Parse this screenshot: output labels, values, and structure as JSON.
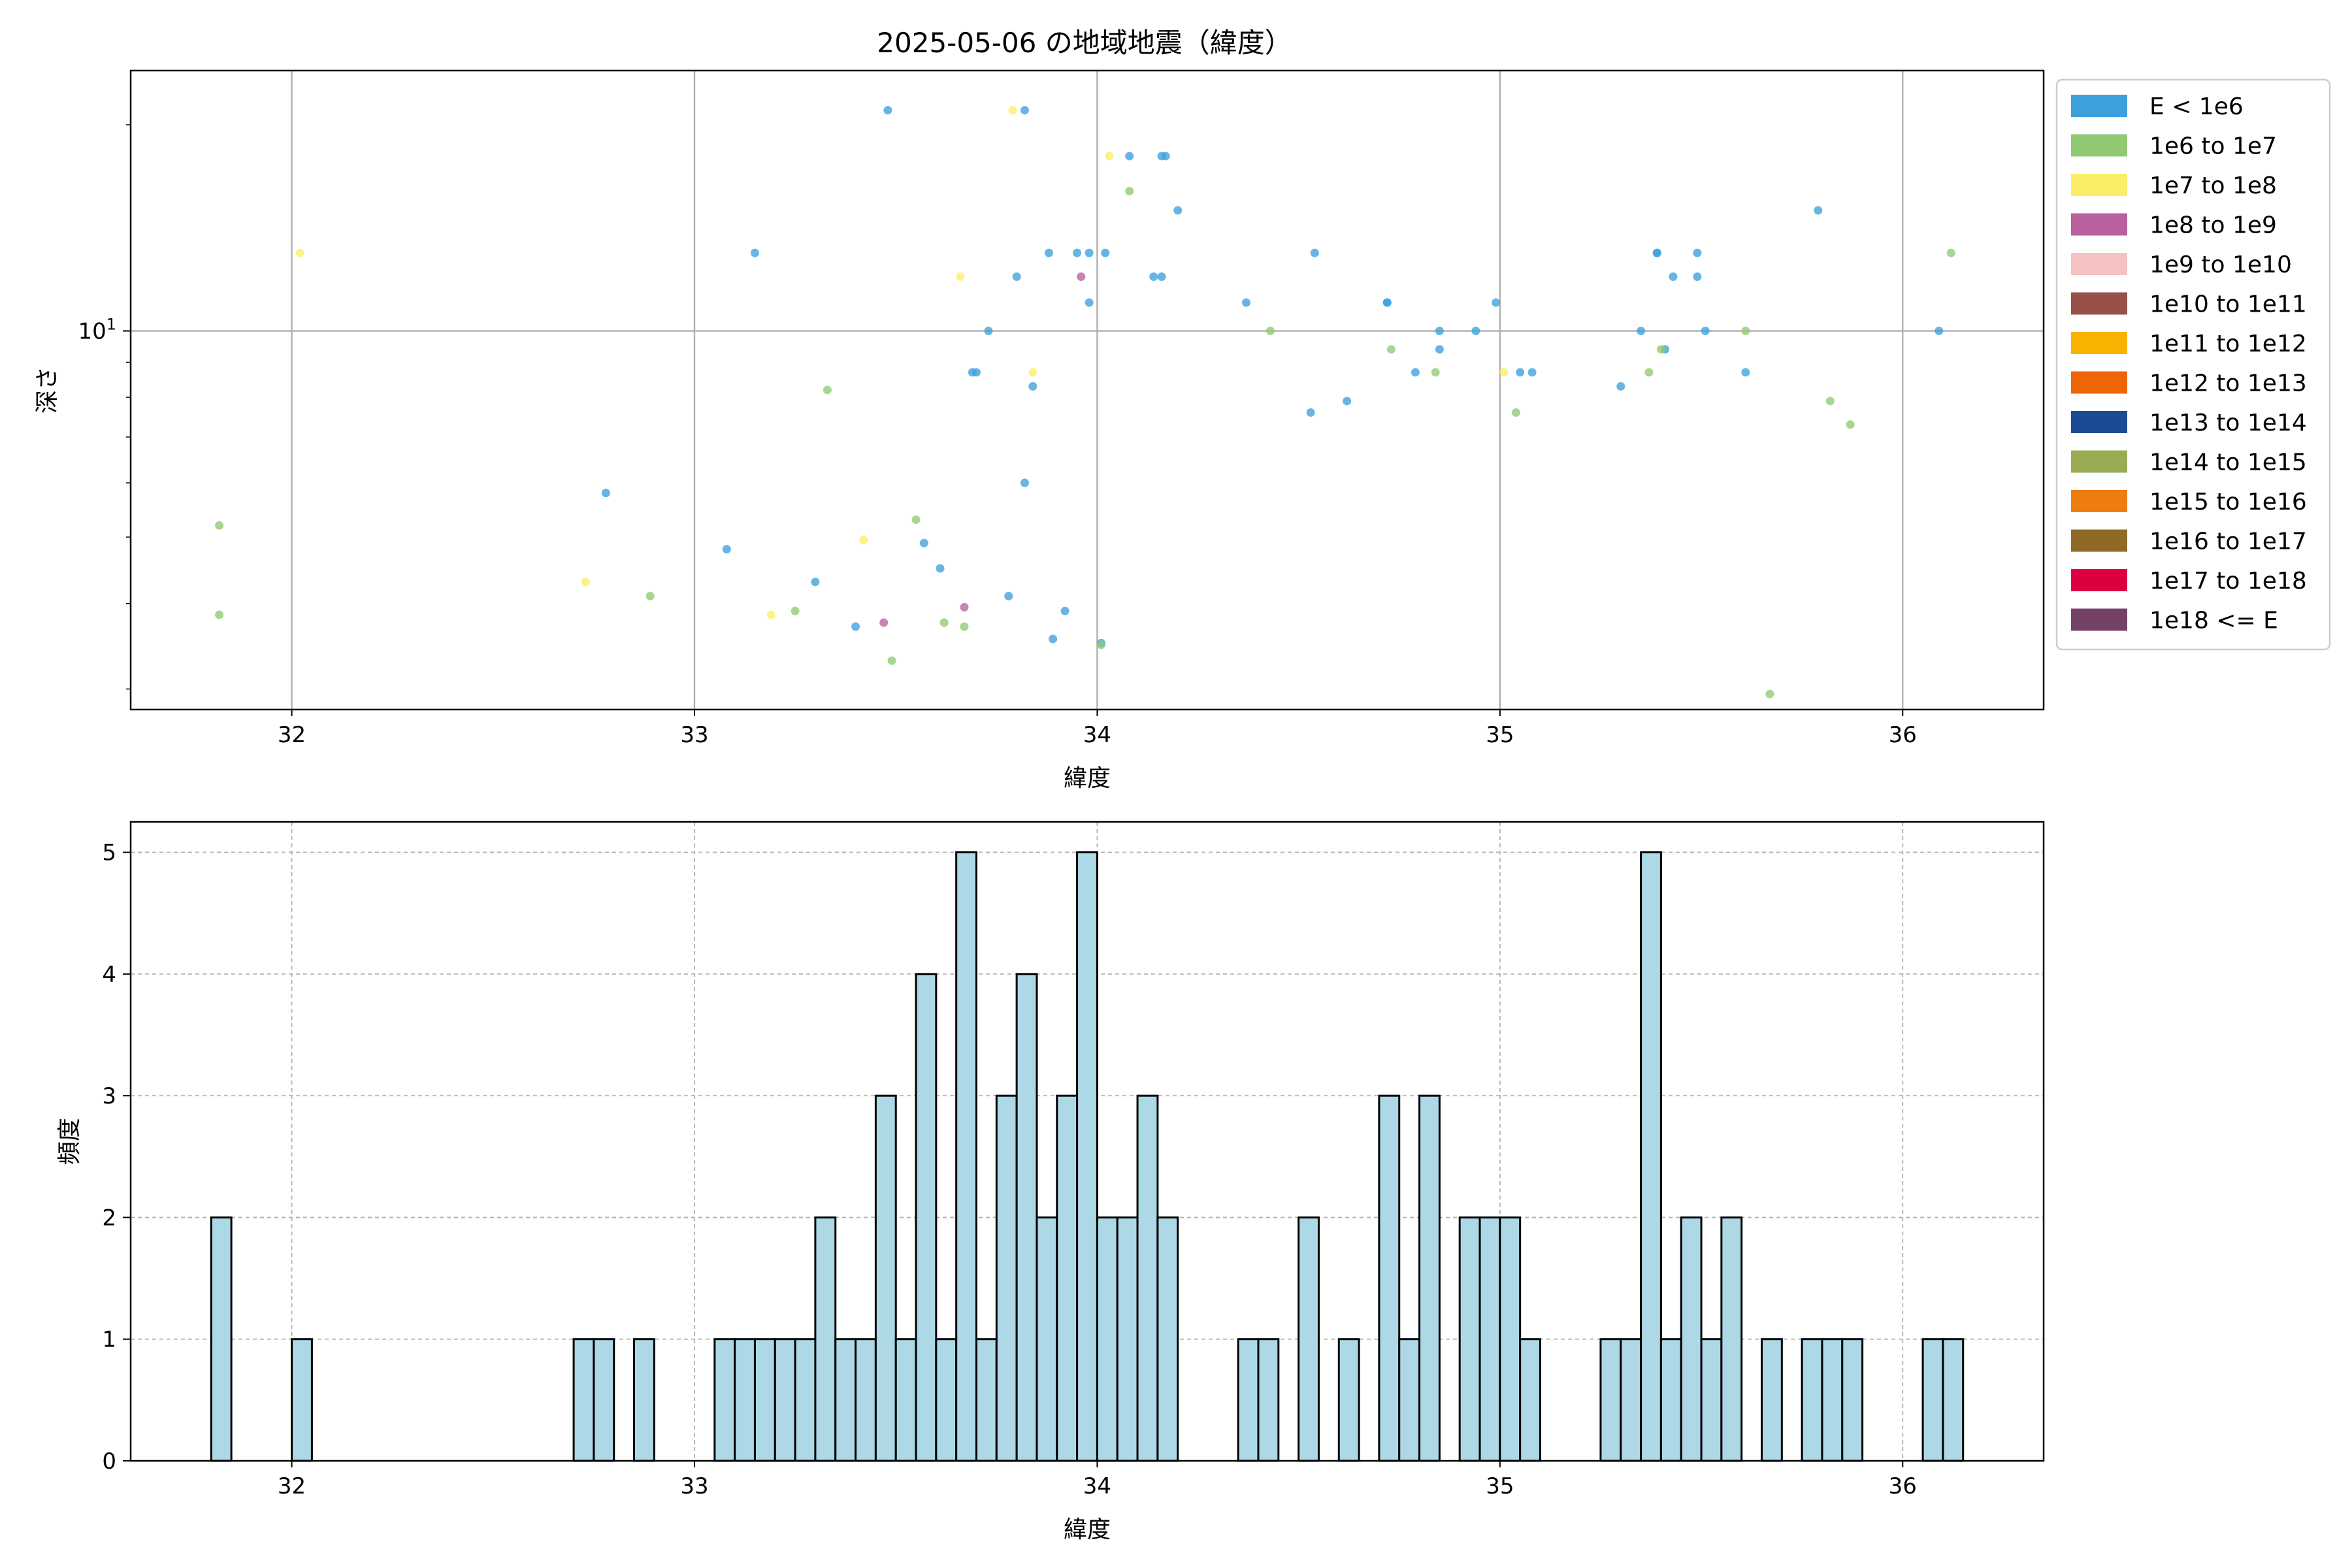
{
  "chart_data": [
    {
      "type": "scatter",
      "title": "2025-05-06 の地域地震（緯度）",
      "xlabel": "緯度",
      "ylabel": "深さ",
      "xlim": [
        31.6,
        36.35
      ],
      "ylim": [
        2.8,
        24.0
      ],
      "yscale": "log",
      "xticks": [
        "32",
        "33",
        "34",
        "35",
        "36"
      ],
      "yticks": [
        {
          "value": 10,
          "base": "10",
          "exponent": "1"
        }
      ],
      "grid": true,
      "legend_position": "outside-right",
      "legend": [
        {
          "label": "E < 1e6",
          "color": "#3ca0dc"
        },
        {
          "label": "1e6 to 1e7",
          "color": "#8fca72"
        },
        {
          "label": "1e7 to 1e8",
          "color": "#fbee66"
        },
        {
          "label": "1e8 to 1e9",
          "color": "#b8619e"
        },
        {
          "label": "1e9 to 1e10",
          "color": "#f4c2c0"
        },
        {
          "label": "1e10 to 1e11",
          "color": "#975148"
        },
        {
          "label": "1e11 to 1e12",
          "color": "#f7b300"
        },
        {
          "label": "1e12 to 1e13",
          "color": "#ee6508"
        },
        {
          "label": "1e13 to 1e14",
          "color": "#1b4b95"
        },
        {
          "label": "1e14 to 1e15",
          "color": "#9aac53"
        },
        {
          "label": "1e15 to 1e16",
          "color": "#ee7d10"
        },
        {
          "label": "1e16 to 1e17",
          "color": "#8f6a26"
        },
        {
          "label": "1e17 to 1e18",
          "color": "#dd0040"
        },
        {
          "label": "1e18 <= E",
          "color": "#754267"
        }
      ],
      "series": [
        {
          "class": 0,
          "points": [
            [
              33.48,
              21
            ],
            [
              33.82,
              21
            ],
            [
              34.08,
              18
            ],
            [
              34.16,
              18
            ],
            [
              34.17,
              18
            ],
            [
              33.15,
              13
            ],
            [
              33.88,
              13
            ],
            [
              33.95,
              13
            ],
            [
              33.98,
              13
            ],
            [
              34.02,
              13
            ],
            [
              34.2,
              15
            ],
            [
              34.54,
              13
            ],
            [
              33.8,
              12
            ],
            [
              34.14,
              12
            ],
            [
              34.16,
              12
            ],
            [
              33.98,
              11
            ],
            [
              33.73,
              10
            ],
            [
              34.37,
              11
            ],
            [
              34.72,
              11
            ],
            [
              34.72,
              11
            ],
            [
              34.99,
              11
            ],
            [
              34.85,
              10
            ],
            [
              34.94,
              10
            ],
            [
              34.85,
              9.4
            ],
            [
              33.69,
              8.7
            ],
            [
              33.7,
              8.7
            ],
            [
              33.84,
              8.3
            ],
            [
              34.79,
              8.7
            ],
            [
              35.05,
              8.7
            ],
            [
              35.08,
              8.7
            ],
            [
              35.39,
              13
            ],
            [
              35.39,
              13
            ],
            [
              35.49,
              13
            ],
            [
              35.43,
              12
            ],
            [
              35.49,
              12
            ],
            [
              35.79,
              15
            ],
            [
              35.35,
              10
            ],
            [
              35.51,
              10
            ],
            [
              35.41,
              9.4
            ],
            [
              35.3,
              8.3
            ],
            [
              35.61,
              8.7
            ],
            [
              36.09,
              10
            ],
            [
              34.53,
              7.6
            ],
            [
              34.62,
              7.9
            ],
            [
              32.78,
              5.8
            ],
            [
              33.82,
              6
            ],
            [
              33.08,
              4.8
            ],
            [
              33.57,
              4.9
            ],
            [
              33.61,
              4.5
            ],
            [
              33.3,
              4.3
            ],
            [
              33.78,
              4.1
            ],
            [
              33.92,
              3.9
            ],
            [
              33.4,
              3.7
            ],
            [
              33.89,
              3.55
            ],
            [
              34.01,
              3.5
            ]
          ]
        },
        {
          "class": 1,
          "points": [
            [
              34.08,
              16
            ],
            [
              34.43,
              10
            ],
            [
              34.73,
              9.4
            ],
            [
              34.84,
              8.7
            ],
            [
              35.04,
              7.6
            ],
            [
              35.37,
              8.7
            ],
            [
              35.4,
              9.4
            ],
            [
              35.61,
              10
            ],
            [
              35.82,
              7.9
            ],
            [
              35.87,
              7.3
            ],
            [
              36.12,
              13
            ],
            [
              33.33,
              8.2
            ],
            [
              32.89,
              4.1
            ],
            [
              33.25,
              3.9
            ],
            [
              33.55,
              5.3
            ],
            [
              33.62,
              3.75
            ],
            [
              33.67,
              3.7
            ],
            [
              34.01,
              3.48
            ],
            [
              33.49,
              3.3
            ],
            [
              35.67,
              2.95
            ],
            [
              31.82,
              5.2
            ],
            [
              31.82,
              3.85
            ]
          ]
        },
        {
          "class": 2,
          "points": [
            [
              32.02,
              13
            ],
            [
              33.79,
              21
            ],
            [
              34.03,
              18
            ],
            [
              33.66,
              12
            ],
            [
              33.84,
              8.7
            ],
            [
              35.01,
              8.7
            ],
            [
              33.42,
              4.95
            ],
            [
              32.73,
              4.3
            ],
            [
              33.19,
              3.85
            ]
          ]
        },
        {
          "class": 3,
          "points": [
            [
              33.96,
              12
            ],
            [
              33.47,
              3.75
            ],
            [
              33.67,
              3.95
            ]
          ]
        }
      ]
    },
    {
      "type": "bar",
      "xlabel": "緯度",
      "ylabel": "頻度",
      "xlim": [
        31.6,
        36.35
      ],
      "ylim": [
        0,
        5.25
      ],
      "xticks": [
        "32",
        "33",
        "34",
        "35",
        "36"
      ],
      "yticks": [
        "0",
        "1",
        "2",
        "3",
        "4",
        "5"
      ],
      "grid": true,
      "bin_start": 31.8,
      "bin_width": 0.05,
      "values": [
        2,
        0,
        0,
        0,
        1,
        0,
        0,
        0,
        0,
        0,
        0,
        0,
        0,
        0,
        0,
        0,
        0,
        0,
        1,
        1,
        0,
        1,
        0,
        0,
        0,
        1,
        1,
        1,
        1,
        1,
        2,
        1,
        1,
        3,
        1,
        4,
        1,
        5,
        1,
        3,
        4,
        2,
        3,
        5,
        2,
        2,
        3,
        2,
        0,
        0,
        0,
        1,
        1,
        0,
        2,
        0,
        1,
        0,
        3,
        1,
        3,
        0,
        2,
        2,
        2,
        1,
        0,
        0,
        0,
        1,
        1,
        5,
        1,
        2,
        1,
        2,
        0,
        1,
        0,
        1,
        1,
        1,
        0,
        0,
        0,
        1,
        1
      ]
    }
  ]
}
